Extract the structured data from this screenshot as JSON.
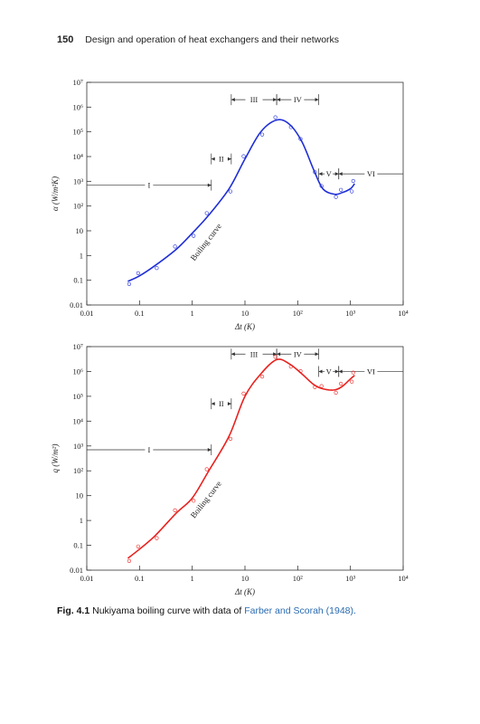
{
  "header": {
    "page_number": "150",
    "running_title": "Design and operation of heat exchangers and their networks"
  },
  "caption": {
    "label": "Fig. 4.1",
    "text": "Nukiyama boiling curve with data of",
    "citation": "Farber and Scorah (1948)."
  },
  "chart_data": [
    {
      "type": "line",
      "xscale": "log",
      "yscale": "log",
      "xlim": [
        0.01,
        10000
      ],
      "ylim": [
        0.01,
        10000000
      ],
      "xlabel": "Δt (K)",
      "ylabel": "α (W/m²K)",
      "xticks": [
        "0.01",
        "0.1",
        "1",
        "10",
        "10²",
        "10³",
        "10⁴"
      ],
      "yticks": [
        "0.01",
        "0.1",
        "1",
        "10",
        "10²",
        "10³",
        "10⁴",
        "10⁵",
        "10⁶",
        "10⁷"
      ],
      "color": "#1f2fd6",
      "curve_label": "Boiling curve",
      "series": [
        {
          "x": [
            0.06,
            0.1,
            0.2,
            0.5,
            1,
            2,
            5,
            10,
            20,
            40,
            70,
            120,
            200,
            300,
            500,
            700,
            1000,
            1200
          ],
          "y": [
            0.09,
            0.15,
            0.4,
            1.8,
            8,
            40,
            500,
            8000,
            100000,
            300000,
            200000,
            40000,
            3000,
            500,
            300,
            350,
            500,
            800
          ]
        }
      ],
      "regimes": [
        {
          "label": "I",
          "x_range": [
            0.01,
            2.3
          ],
          "y_at": 700
        },
        {
          "label": "II",
          "x_range": [
            2.3,
            5.5
          ],
          "y_at": 8000
        },
        {
          "label": "III",
          "x_range": [
            5.5,
            40
          ],
          "y_at": 2000000
        },
        {
          "label": "IV",
          "x_range": [
            40,
            250
          ],
          "y_at": 2000000
        },
        {
          "label": "V",
          "x_range": [
            250,
            600
          ],
          "y_at": 2000
        },
        {
          "label": "VI",
          "x_range": [
            600,
            10000
          ],
          "y_at": 2000
        }
      ]
    },
    {
      "type": "line",
      "xscale": "log",
      "yscale": "log",
      "xlim": [
        0.01,
        10000
      ],
      "ylim": [
        0.01,
        10000000
      ],
      "xlabel": "Δt (K)",
      "ylabel": "q (W/m²)",
      "xticks": [
        "0.01",
        "0.1",
        "1",
        "10",
        "10²",
        "10³",
        "10⁴"
      ],
      "yticks": [
        "0.01",
        "0.1",
        "1",
        "10",
        "10²",
        "10³",
        "10⁴",
        "10⁵",
        "10⁶",
        "10⁷"
      ],
      "color": "#e8221f",
      "curve_label": "Boiling curve",
      "series": [
        {
          "x": [
            0.06,
            0.1,
            0.2,
            0.5,
            1,
            2,
            5,
            10,
            20,
            40,
            70,
            120,
            200,
            300,
            500,
            700,
            1000,
            1200
          ],
          "y": [
            0.03,
            0.07,
            0.25,
            2,
            8,
            90,
            2500,
            100000,
            800000,
            3000000,
            2000000,
            800000,
            300000,
            200000,
            180000,
            250000,
            500000,
            700000
          ]
        }
      ],
      "regimes": [
        {
          "label": "I",
          "x_range": [
            0.01,
            2.3
          ],
          "y_at": 700
        },
        {
          "label": "II",
          "x_range": [
            2.3,
            5.5
          ],
          "y_at": 50000
        },
        {
          "label": "III",
          "x_range": [
            5.5,
            40
          ],
          "y_at": 5000000
        },
        {
          "label": "IV",
          "x_range": [
            40,
            250
          ],
          "y_at": 5000000
        },
        {
          "label": "V",
          "x_range": [
            250,
            600
          ],
          "y_at": 1000000
        },
        {
          "label": "VI",
          "x_range": [
            600,
            10000
          ],
          "y_at": 1000000
        }
      ]
    }
  ]
}
